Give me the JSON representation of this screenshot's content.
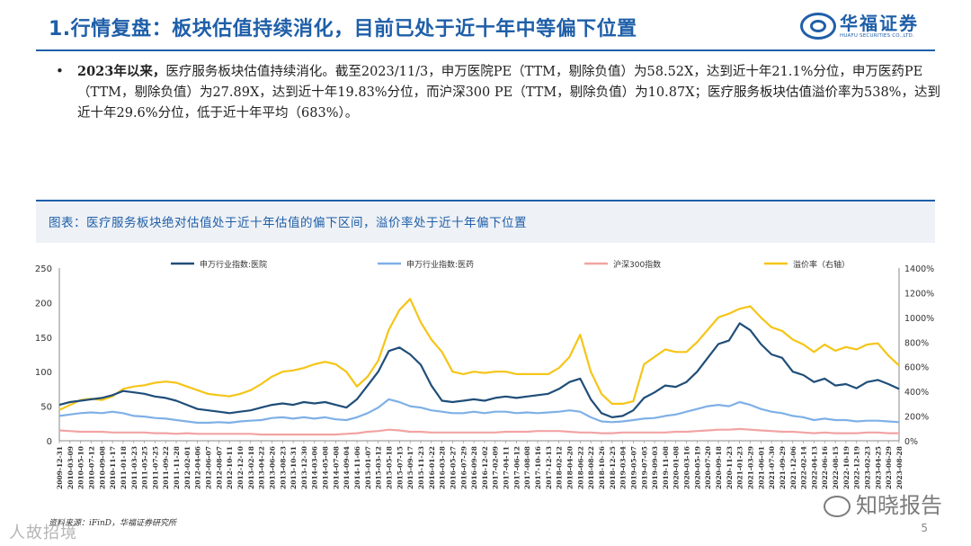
{
  "header": {
    "title": "1.行情复盘：板块估值持续消化，目前已处于近十年中等偏下位置",
    "logo_text": "华福证券",
    "logo_sub": "HUAFU SECURITIES CO.,LTD."
  },
  "bullet": {
    "mark": "•",
    "lead": "2023年以来，",
    "text": "医疗服务板块估值持续消化。截至2023/11/3，申万医院PE（TTM，剔除负值）为58.52X，达到近十年21.1%分位，申万医药PE（TTM，剔除负值）为27.89X，达到近十年19.83%分位，而沪深300 PE（TTM，剔除负值）为10.87X；医疗服务板块估值溢价率为538%，达到近十年29.6%分位，低于近十年平均（683%）。"
  },
  "figure_caption": "图表：医疗服务板块绝对估值处于近十年估值的偏下区间，溢价率处于近十年偏下位置",
  "source": "资料来源：iFinD，华福证券研究所",
  "page_number": "5",
  "watermark_left": "人故招境",
  "watermark_right": "知晓报告",
  "colors": {
    "brand": "#1f5fa8",
    "hospital": "#1f4e79",
    "pharma": "#7fb0e6",
    "hs300": "#f2a3a3",
    "premium": "#f5c518"
  },
  "chart_data": {
    "type": "line",
    "x_labels": [
      "2009-12-31",
      "2010-03-09",
      "2010-05-10",
      "2010-07-12",
      "2010-09-08",
      "2010-11-17",
      "2011-01-18",
      "2011-03-23",
      "2011-05-25",
      "2011-07-25",
      "2011-09-22",
      "2011-11-28",
      "2012-02-01",
      "2012-04-06",
      "2012-06-07",
      "2012-08-07",
      "2012-10-11",
      "2012-12-10",
      "2013-02-18",
      "2013-04-22",
      "2013-06-26",
      "2013-08-23",
      "2013-10-31",
      "2013-12-30",
      "2014-03-06",
      "2014-05-08",
      "2014-07-08",
      "2014-09-04",
      "2014-11-06",
      "2015-01-07",
      "2015-03-12",
      "2015-05-18",
      "2015-07-15",
      "2015-09-17",
      "2015-11-23",
      "2016-01-22",
      "2016-03-28",
      "2016-05-27",
      "2016-07-29",
      "2016-09-28",
      "2016-12-02",
      "2017-02-09",
      "2017-04-11",
      "2017-06-12",
      "2017-08-08",
      "2017-10-16",
      "2017-12-13",
      "2018-02-12",
      "2018-04-20",
      "2018-06-22",
      "2018-08-22",
      "2018-10-26",
      "2018-12-25",
      "2019-03-04",
      "2019-05-07",
      "2019-07-05",
      "2019-09-03",
      "2019-11-08",
      "2020-01-08",
      "2020-03-16",
      "2020-05-19",
      "2020-07-20",
      "2020-09-18",
      "2020-11-23",
      "2021-01-23",
      "2021-03-29",
      "2021-06-01",
      "2021-07-30",
      "2021-09-29",
      "2021-12-06",
      "2022-02-14",
      "2022-04-13",
      "2022-06-16",
      "2022-08-15",
      "2022-10-19",
      "2022-12-19",
      "2023-02-23",
      "2023-04-25",
      "2023-06-29",
      "2023-08-28"
    ],
    "left_axis": {
      "min": 0,
      "max": 250,
      "ticks": [
        0,
        50,
        100,
        150,
        200,
        250
      ]
    },
    "right_axis": {
      "min": 0,
      "max": 1400,
      "ticks": [
        "0%",
        "200%",
        "400%",
        "600%",
        "800%",
        "1000%",
        "1200%",
        "1400%"
      ],
      "label": ""
    },
    "series": [
      {
        "name": "申万行业指数:医院",
        "axis": "left",
        "values": [
          52,
          56,
          58,
          60,
          62,
          66,
          72,
          70,
          68,
          64,
          62,
          58,
          52,
          46,
          44,
          42,
          40,
          42,
          44,
          48,
          52,
          54,
          52,
          56,
          54,
          56,
          52,
          48,
          60,
          80,
          100,
          130,
          135,
          125,
          110,
          80,
          58,
          56,
          58,
          60,
          58,
          62,
          64,
          62,
          64,
          66,
          68,
          75,
          85,
          90,
          60,
          40,
          34,
          36,
          44,
          62,
          70,
          80,
          78,
          85,
          100,
          120,
          140,
          145,
          170,
          160,
          140,
          125,
          120,
          100,
          95,
          85,
          90,
          80,
          82,
          76,
          85,
          88,
          82,
          75
        ]
      },
      {
        "name": "申万行业指数:医药",
        "axis": "left",
        "values": [
          36,
          38,
          40,
          41,
          40,
          42,
          40,
          36,
          35,
          33,
          32,
          30,
          28,
          26,
          26,
          27,
          26,
          28,
          29,
          30,
          33,
          34,
          32,
          34,
          32,
          34,
          31,
          30,
          34,
          40,
          48,
          60,
          56,
          50,
          48,
          44,
          42,
          40,
          40,
          42,
          40,
          42,
          42,
          40,
          41,
          40,
          41,
          42,
          44,
          42,
          34,
          28,
          27,
          28,
          30,
          32,
          33,
          36,
          38,
          42,
          46,
          50,
          52,
          50,
          56,
          52,
          46,
          42,
          40,
          36,
          34,
          30,
          32,
          30,
          30,
          28,
          29,
          29,
          28,
          27
        ]
      },
      {
        "name": "沪深300指数",
        "axis": "left",
        "values": [
          15,
          14,
          13,
          13,
          13,
          12,
          12,
          12,
          12,
          11,
          11,
          10,
          11,
          10,
          10,
          10,
          10,
          10,
          10,
          9,
          9,
          9,
          9,
          9,
          9,
          9,
          9,
          10,
          11,
          13,
          14,
          16,
          15,
          13,
          13,
          12,
          12,
          12,
          12,
          12,
          12,
          12,
          13,
          13,
          13,
          14,
          14,
          14,
          13,
          12,
          12,
          11,
          11,
          12,
          12,
          12,
          12,
          12,
          13,
          13,
          14,
          15,
          16,
          16,
          17,
          16,
          15,
          14,
          13,
          13,
          12,
          11,
          12,
          11,
          11,
          11,
          12,
          12,
          11,
          11
        ]
      },
      {
        "name": "溢价率（右轴）",
        "axis": "right",
        "values": [
          250,
          290,
          330,
          340,
          330,
          360,
          420,
          440,
          450,
          470,
          480,
          470,
          440,
          410,
          380,
          370,
          360,
          380,
          410,
          460,
          520,
          560,
          570,
          590,
          620,
          640,
          620,
          560,
          440,
          520,
          650,
          900,
          1060,
          1150,
          960,
          820,
          720,
          560,
          540,
          560,
          550,
          560,
          560,
          540,
          540,
          540,
          540,
          590,
          680,
          860,
          560,
          380,
          300,
          300,
          320,
          620,
          680,
          740,
          720,
          720,
          800,
          900,
          1000,
          1030,
          1070,
          1090,
          1000,
          920,
          890,
          820,
          780,
          720,
          780,
          730,
          760,
          740,
          780,
          790,
          690,
          610
        ]
      }
    ]
  }
}
